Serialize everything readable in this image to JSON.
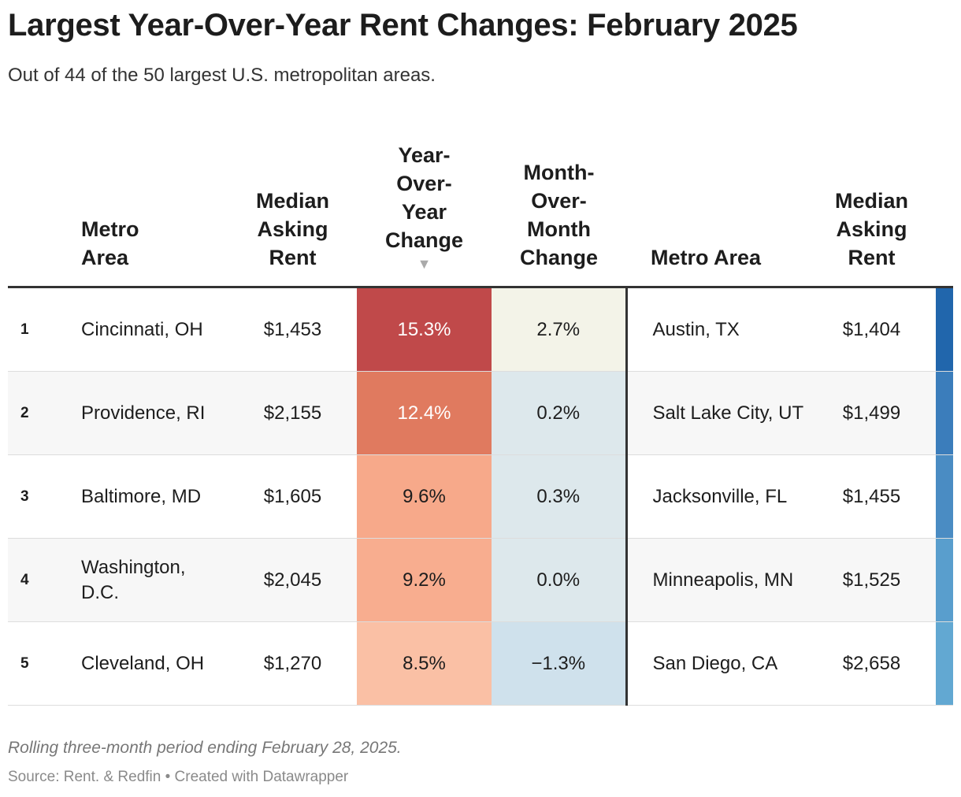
{
  "header": {
    "title": "Largest Year-Over-Year Rent Changes: February 2025",
    "subtitle": "Out of 44 of the 50 largest U.S. metropolitan areas."
  },
  "table": {
    "columns": [
      "Metro Area",
      "Median Asking Rent",
      "Year-Over-Year Change",
      "Month-Over-Month Change",
      "Metro Area",
      "Median Asking Rent"
    ],
    "rows": [
      [
        "1",
        "Cincinnati, OH",
        "$1,453",
        "15.3%",
        "2.7%",
        "Austin, TX",
        "$1,404"
      ],
      [
        "2",
        "Providence, RI",
        "$2,155",
        "12.4%",
        "0.2%",
        "Salt Lake City, UT",
        "$1,499"
      ],
      [
        "3",
        "Baltimore, MD",
        "$1,605",
        "9.6%",
        "0.3%",
        "Jacksonville, FL",
        "$1,455"
      ],
      [
        "4",
        "Washington, D.C.",
        "$2,045",
        "9.2%",
        "0.0%",
        "Minneapolis, MN",
        "$1,525"
      ],
      [
        "5",
        "Cleveland, OH",
        "$1,270",
        "8.5%",
        "−1.3%",
        "San Diego, CA",
        "$2,658"
      ]
    ]
  },
  "footer": {
    "note": "Rolling three-month period ending February 28, 2025.",
    "source": "Source: Rent. & Redfin • Created with Datawrapper"
  }
}
